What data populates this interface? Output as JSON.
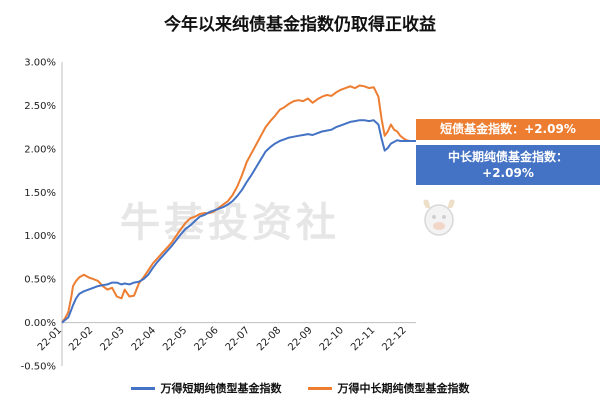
{
  "title": "今年以来纯债基金指数仍取得正收益",
  "watermark": "牛基投资社",
  "callouts": {
    "short": "短债基金指数：+2.09%",
    "mid": "中长期纯债基金指数：+2.09%"
  },
  "colors": {
    "short": "#4472C4",
    "mid": "#ED7D31"
  },
  "chart_data": {
    "type": "line",
    "title": "今年以来纯债基金指数仍取得正收益",
    "y_unit": "%",
    "ylim": [
      -0.5,
      3.0
    ],
    "y_ticks": [
      -0.5,
      0.0,
      0.5,
      1.0,
      1.5,
      2.0,
      2.5,
      3.0
    ],
    "y_tick_labels": [
      "-0.50%",
      "0.00%",
      "0.50%",
      "1.00%",
      "1.50%",
      "2.00%",
      "2.50%",
      "3.00%"
    ],
    "x_tick_labels": [
      "22-01",
      "22-02",
      "22-03",
      "22-04",
      "22-05",
      "22-06",
      "22-07",
      "22-08",
      "22-09",
      "22-10",
      "22-11",
      "22-12"
    ],
    "grid": false,
    "legend_position": "bottom",
    "x": [
      0.0,
      0.1,
      0.2,
      0.3,
      0.35,
      0.45,
      0.55,
      0.7,
      0.85,
      1.0,
      1.15,
      1.3,
      1.45,
      1.6,
      1.75,
      1.9,
      2.0,
      2.15,
      2.3,
      2.45,
      2.6,
      2.75,
      2.9,
      3.05,
      3.2,
      3.35,
      3.5,
      3.65,
      3.8,
      3.95,
      4.1,
      4.25,
      4.4,
      4.55,
      4.7,
      4.85,
      5.0,
      5.15,
      5.3,
      5.45,
      5.6,
      5.75,
      5.9,
      6.05,
      6.2,
      6.35,
      6.5,
      6.65,
      6.8,
      6.95,
      7.1,
      7.25,
      7.4,
      7.55,
      7.7,
      7.85,
      8.0,
      8.15,
      8.3,
      8.45,
      8.6,
      8.75,
      8.9,
      9.05,
      9.2,
      9.35,
      9.5,
      9.65,
      9.8,
      9.95,
      10.1,
      10.2,
      10.3,
      10.4,
      10.5,
      10.6,
      10.7,
      10.8,
      10.9,
      11.0,
      11.1,
      11.2,
      11.3
    ],
    "series": [
      {
        "name": "万得短期纯债型基金指数",
        "values": [
          0.0,
          0.03,
          0.06,
          0.15,
          0.2,
          0.28,
          0.33,
          0.36,
          0.38,
          0.4,
          0.42,
          0.43,
          0.44,
          0.46,
          0.46,
          0.44,
          0.45,
          0.44,
          0.46,
          0.47,
          0.5,
          0.55,
          0.63,
          0.7,
          0.76,
          0.82,
          0.88,
          0.95,
          1.02,
          1.08,
          1.12,
          1.17,
          1.22,
          1.24,
          1.27,
          1.29,
          1.31,
          1.33,
          1.36,
          1.4,
          1.46,
          1.53,
          1.62,
          1.7,
          1.79,
          1.88,
          1.97,
          2.02,
          2.06,
          2.09,
          2.11,
          2.13,
          2.14,
          2.15,
          2.16,
          2.17,
          2.16,
          2.18,
          2.2,
          2.21,
          2.22,
          2.25,
          2.27,
          2.29,
          2.31,
          2.32,
          2.33,
          2.33,
          2.32,
          2.33,
          2.28,
          2.12,
          1.98,
          2.01,
          2.06,
          2.08,
          2.1,
          2.09,
          2.09,
          2.09,
          2.09,
          2.09,
          2.09
        ]
      },
      {
        "name": "万得中长期纯债型基金指数",
        "values": [
          0.0,
          0.05,
          0.12,
          0.3,
          0.42,
          0.48,
          0.52,
          0.55,
          0.52,
          0.5,
          0.48,
          0.42,
          0.38,
          0.4,
          0.3,
          0.28,
          0.38,
          0.3,
          0.31,
          0.45,
          0.52,
          0.6,
          0.68,
          0.74,
          0.8,
          0.86,
          0.92,
          1.0,
          1.08,
          1.15,
          1.2,
          1.22,
          1.25,
          1.26,
          1.26,
          1.28,
          1.32,
          1.36,
          1.4,
          1.47,
          1.57,
          1.7,
          1.85,
          1.95,
          2.05,
          2.15,
          2.25,
          2.32,
          2.38,
          2.45,
          2.48,
          2.52,
          2.55,
          2.56,
          2.55,
          2.58,
          2.53,
          2.57,
          2.6,
          2.62,
          2.61,
          2.65,
          2.68,
          2.7,
          2.72,
          2.7,
          2.73,
          2.72,
          2.7,
          2.71,
          2.6,
          2.35,
          2.15,
          2.2,
          2.28,
          2.22,
          2.2,
          2.15,
          2.12,
          2.1,
          2.09,
          2.09,
          2.09
        ]
      }
    ]
  }
}
